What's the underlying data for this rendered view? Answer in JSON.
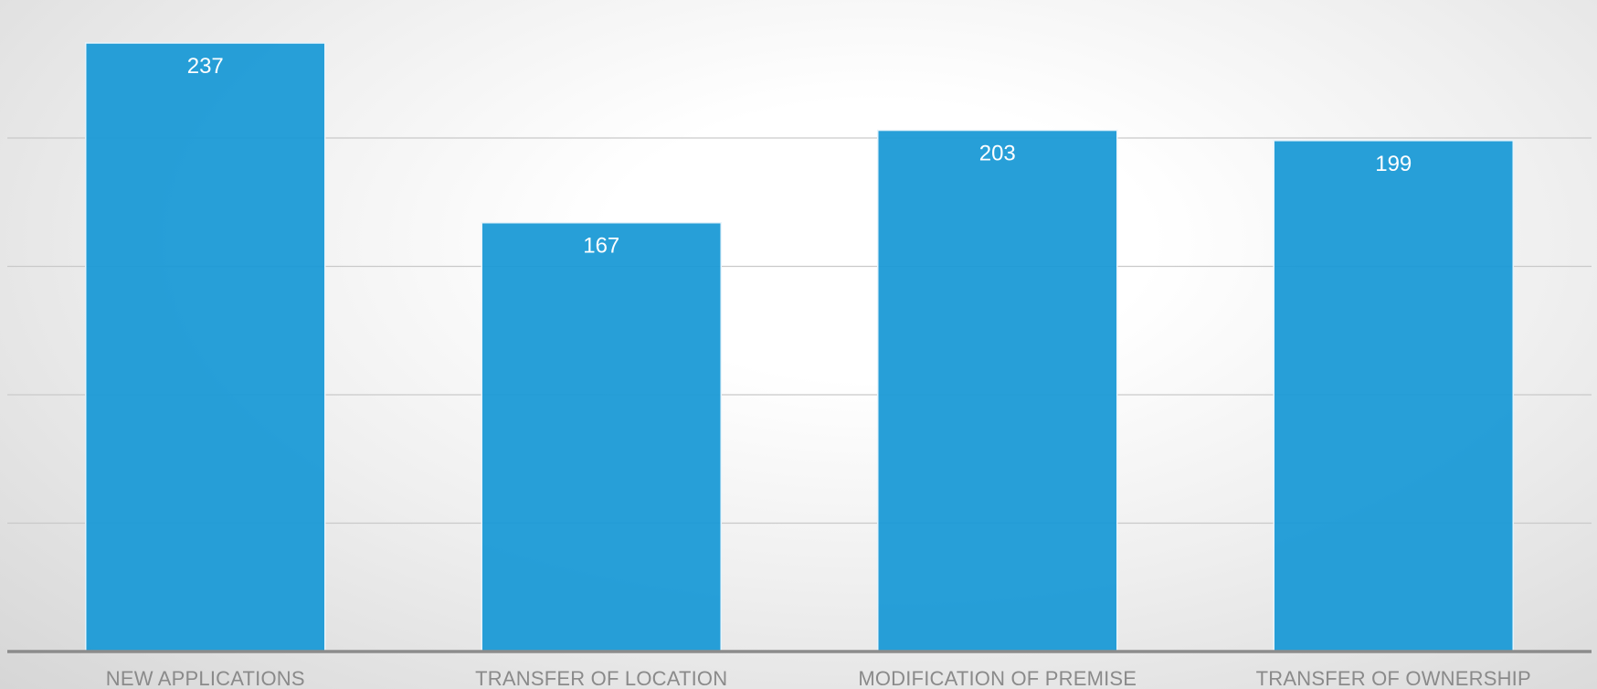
{
  "chart_data": {
    "type": "bar",
    "title": "",
    "xlabel": "",
    "ylabel": "",
    "categories": [
      "NEW APPLICATIONS",
      "TRANSFER OF LOCATION",
      "MODIFICATION OF PREMISE",
      "TRANSFER OF OWNERSHIP"
    ],
    "values": [
      237,
      167,
      203,
      199
    ],
    "ylim": [
      0,
      250
    ],
    "gridlines": [
      50,
      100,
      150,
      200
    ],
    "grid": true,
    "legend": "none",
    "data_labels": true,
    "colors": {
      "bar": "#1b9ad6",
      "bar_label": "#ffffff",
      "axis": "#8c8c8c",
      "grid": "#c9c9c9",
      "category_text": "#8a8a8a"
    }
  }
}
